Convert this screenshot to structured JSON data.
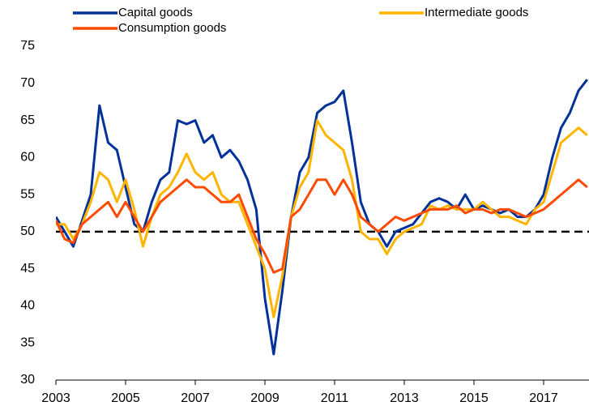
{
  "chart_data": {
    "type": "line",
    "x": [
      2003,
      2003.25,
      2003.5,
      2003.75,
      2004,
      2004.25,
      2004.5,
      2004.75,
      2005,
      2005.25,
      2005.5,
      2005.75,
      2006,
      2006.25,
      2006.5,
      2006.75,
      2007,
      2007.25,
      2007.5,
      2007.75,
      2008,
      2008.25,
      2008.5,
      2008.75,
      2009,
      2009.25,
      2009.5,
      2009.75,
      2010,
      2010.25,
      2010.5,
      2010.75,
      2011,
      2011.25,
      2011.5,
      2011.75,
      2012,
      2012.25,
      2012.5,
      2012.75,
      2013,
      2013.25,
      2013.5,
      2013.75,
      2014,
      2014.25,
      2014.5,
      2014.75,
      2015,
      2015.25,
      2015.5,
      2015.75,
      2016,
      2016.25,
      2016.5,
      2016.75,
      2017,
      2017.25,
      2017.5,
      2017.75,
      2018,
      2018.25
    ],
    "series": [
      {
        "name": "Capital goods",
        "color": "#003299",
        "values": [
          52,
          50,
          48,
          51.5,
          55,
          67,
          62,
          61,
          56,
          51,
          50,
          54,
          57,
          58,
          65,
          64.5,
          65,
          62,
          63,
          60,
          61,
          59.5,
          57,
          53,
          41,
          33.5,
          42,
          52,
          58,
          60,
          66,
          67,
          67.5,
          69,
          62,
          54,
          51,
          50,
          48,
          50,
          50.5,
          51,
          52.5,
          54,
          54.5,
          54,
          53,
          55,
          53,
          53.5,
          53,
          52.5,
          53,
          52,
          52,
          53,
          55,
          60,
          64,
          66,
          69,
          70.5
        ]
      },
      {
        "name": "Intermediate goods",
        "color": "#FFB400",
        "values": [
          51,
          51,
          49,
          51,
          54,
          58,
          57,
          54,
          57,
          53,
          48,
          52,
          55,
          56,
          58,
          60.5,
          58,
          57,
          58,
          55,
          54,
          54,
          51,
          48,
          45,
          38.5,
          44,
          52,
          56,
          58,
          65,
          63,
          62,
          61,
          57,
          50,
          49,
          49,
          47,
          49,
          50,
          50.5,
          51,
          53.5,
          53,
          53.5,
          53,
          53,
          53,
          54,
          53,
          52,
          52,
          51.5,
          51,
          53,
          54,
          58,
          62,
          63,
          64,
          63
        ]
      },
      {
        "name": "Consumption goods",
        "color": "#FF4B00",
        "values": [
          51.5,
          49,
          48.5,
          51,
          52,
          53,
          54,
          52,
          54,
          52,
          50,
          52,
          54,
          55,
          56,
          57,
          56,
          56,
          55,
          54,
          54,
          55,
          52,
          49,
          47,
          44.5,
          45,
          52,
          53,
          55,
          57,
          57,
          55,
          57,
          55,
          52,
          51,
          50,
          51,
          52,
          51.5,
          52,
          52.5,
          53,
          53,
          53,
          53.5,
          52.5,
          53,
          53,
          52.5,
          53,
          53,
          52.5,
          52,
          52.5,
          53,
          54,
          55,
          56,
          57,
          56
        ]
      }
    ],
    "xlim": [
      2003,
      2018.3
    ],
    "xticks": [
      2003,
      2005,
      2007,
      2009,
      2011,
      2013,
      2015,
      2017
    ],
    "ylim": [
      30,
      75
    ],
    "yticks": [
      30,
      35,
      40,
      45,
      50,
      55,
      60,
      65,
      70,
      75
    ],
    "reference_line": 50
  }
}
